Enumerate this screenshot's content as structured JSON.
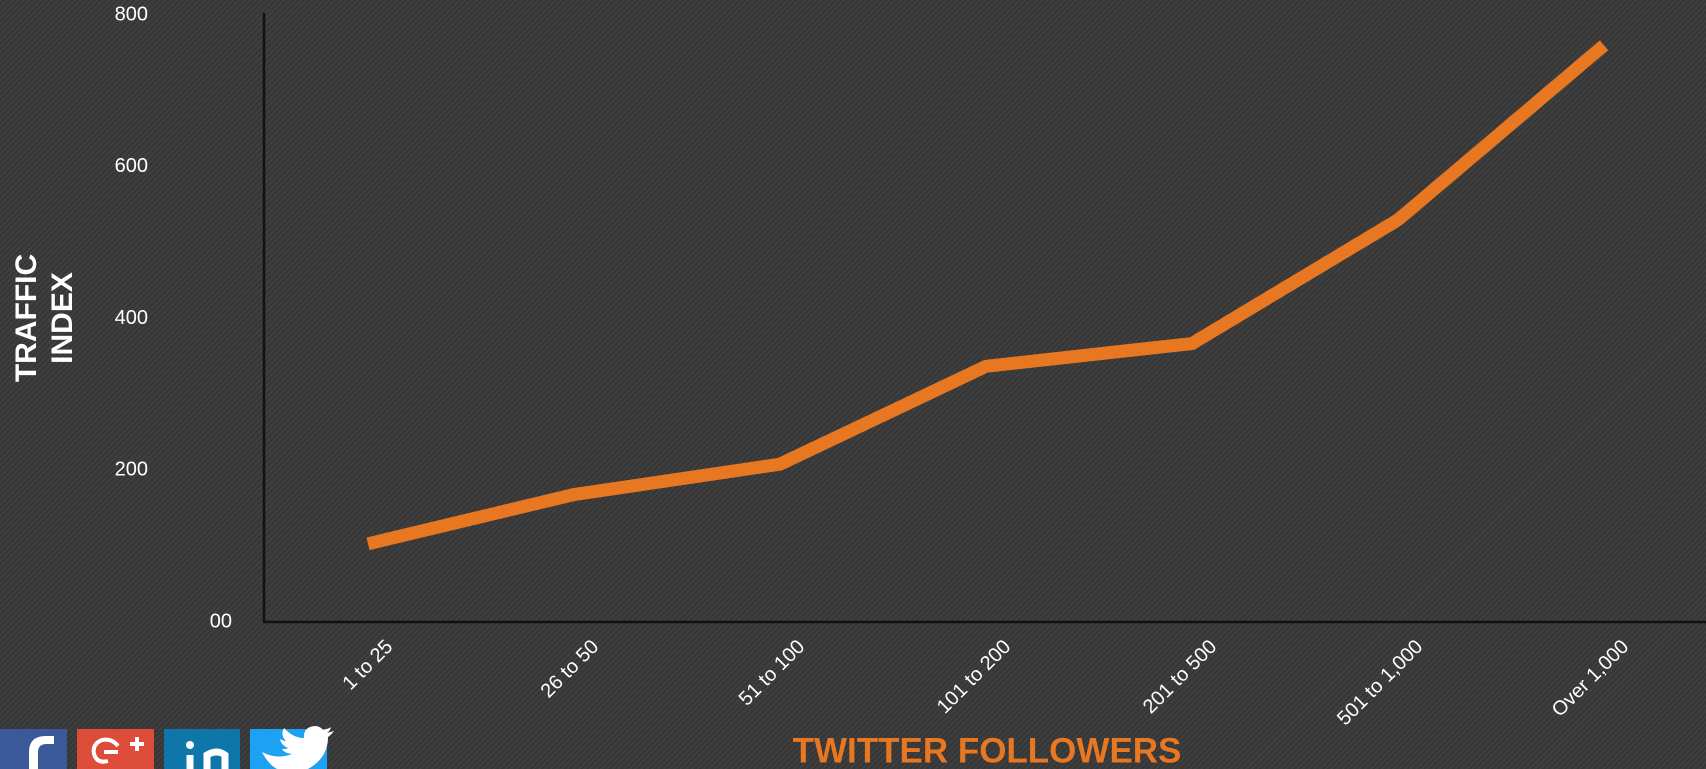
{
  "chart_data": {
    "type": "line",
    "ylabel": [
      "TRAFFIC",
      "INDEX"
    ],
    "xlabel": "TWITTER FOLLOWERS",
    "categories": [
      "1 to 25",
      "26 to 50",
      "51 to 100",
      "101 to 200",
      "201 to 500",
      "501 to 1,000",
      "Over 1,000"
    ],
    "series": [
      {
        "color": "#e87722",
        "values": [
          103,
          168,
          208,
          337,
          367,
          530,
          760
        ]
      }
    ],
    "ylim": [
      0,
      800
    ],
    "yticks": [
      {
        "value": 0,
        "label": "00"
      },
      200,
      400,
      600,
      800
    ],
    "grid": false
  }
}
